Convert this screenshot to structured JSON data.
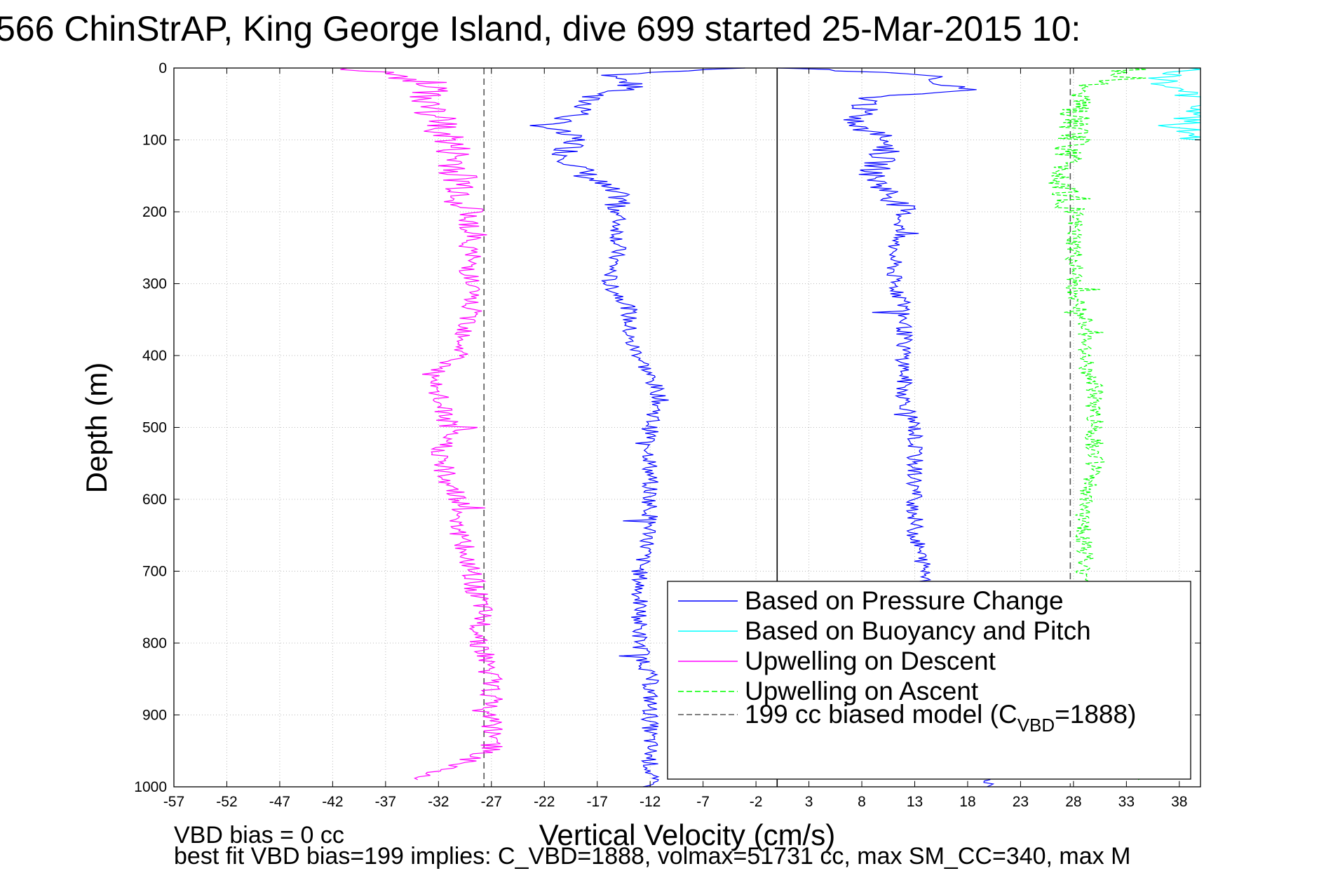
{
  "title": "566 ChinStrAP, King George Island, dive 699 started 25-Mar-2015 10:",
  "footer": {
    "line1": "VBD bias = 0 cc",
    "line2": "best fit VBD bias=199 implies: C_VBD=1888, volmax=51731 cc, max SM_CC=340, max M"
  },
  "chart_data": {
    "type": "line",
    "xlabel": "Vertical Velocity (cm/s)",
    "ylabel": "Depth (m)",
    "xlim": [
      -57,
      40
    ],
    "ylim": [
      1000,
      0
    ],
    "x_ticks": [
      -57,
      -52,
      -47,
      -42,
      -37,
      -32,
      -27,
      -22,
      -17,
      -12,
      -7,
      -2,
      3,
      8,
      13,
      18,
      23,
      28,
      33,
      38
    ],
    "y_ticks": [
      0,
      100,
      200,
      300,
      400,
      500,
      600,
      700,
      800,
      900,
      1000
    ],
    "grid": true,
    "vertical_lines": [
      {
        "x": 0,
        "style": "solid",
        "color": "#000000"
      },
      {
        "x": -27.7,
        "style": "dashed",
        "color": "#555555"
      },
      {
        "x": 27.7,
        "style": "dashed",
        "color": "#555555"
      }
    ],
    "legend_position": "bottom-right",
    "legend": [
      {
        "main": "Based on Pressure Change",
        "sub": "",
        "tail": "",
        "color": "#0000ff",
        "dash": "solid"
      },
      {
        "main": "Based on Buoyancy and Pitch",
        "sub": "",
        "tail": "",
        "color": "#00ffff",
        "dash": "solid"
      },
      {
        "main": "Upwelling on Descent",
        "sub": "",
        "tail": "",
        "color": "#ff00ff",
        "dash": "solid"
      },
      {
        "main": "Upwelling on Ascent",
        "sub": "",
        "tail": "",
        "color": "#00ff00",
        "dash": "dashed"
      },
      {
        "main": "199 cc biased model (C",
        "sub": "VBD",
        "tail": "=1888)",
        "color": "#555555",
        "dash": "dashed"
      }
    ],
    "series": [
      {
        "name": "Based on Pressure Change",
        "color": "#0000ff",
        "dash": "solid",
        "depth": [
          0,
          10,
          20,
          30,
          40,
          60,
          80,
          100,
          120,
          150,
          180,
          200,
          250,
          300,
          330,
          350,
          380,
          400,
          430,
          460,
          500,
          550,
          600,
          650,
          700,
          750,
          800,
          850,
          900,
          950,
          1000
        ],
        "velocity_descent": [
          -3,
          -16,
          -14,
          -14,
          -18,
          -18,
          -22,
          -19,
          -20,
          -18,
          -15,
          -15,
          -15,
          -16,
          -14,
          -14,
          -14,
          -13,
          -12,
          -11,
          -12,
          -12,
          -12,
          -12,
          -13,
          -13,
          -13,
          -12,
          -12,
          -12,
          -12
        ],
        "velocity_ascent": [
          1,
          15,
          14,
          18,
          9,
          8,
          7,
          11,
          10,
          9,
          11,
          12,
          11,
          11,
          12,
          12,
          12,
          12,
          12,
          12,
          13,
          13,
          13,
          13,
          14,
          15,
          16,
          17,
          18,
          19,
          20
        ]
      },
      {
        "name": "Based on Buoyancy and Pitch",
        "color": "#00ffff",
        "dash": "solid",
        "depth": [
          0,
          20,
          40,
          60,
          80,
          100
        ],
        "velocity": [
          40,
          36,
          40,
          40,
          38,
          40
        ]
      },
      {
        "name": "Upwelling on Descent",
        "color": "#ff00ff",
        "dash": "solid",
        "depth": [
          0,
          20,
          50,
          100,
          150,
          200,
          250,
          300,
          350,
          400,
          430,
          460,
          500,
          550,
          600,
          650,
          700,
          750,
          800,
          850,
          900,
          950,
          990
        ],
        "velocity": [
          -40,
          -33,
          -33,
          -31,
          -30,
          -29,
          -29,
          -29,
          -29,
          -30,
          -33,
          -32,
          -31,
          -32,
          -30,
          -30,
          -29,
          -28,
          -28,
          -27,
          -27,
          -27,
          -34
        ]
      },
      {
        "name": "Upwelling on Ascent",
        "color": "#00ff00",
        "dash": "dashed",
        "depth": [
          0,
          20,
          50,
          100,
          150,
          200,
          250,
          300,
          350,
          400,
          450,
          500,
          550,
          600,
          650,
          700,
          750,
          800,
          850,
          900,
          950,
          990
        ],
        "velocity": [
          34,
          30,
          28,
          28,
          27,
          28,
          28,
          28,
          29,
          29,
          30,
          30,
          30,
          29,
          29,
          29,
          30,
          30,
          30,
          30,
          30,
          35
        ]
      }
    ]
  }
}
